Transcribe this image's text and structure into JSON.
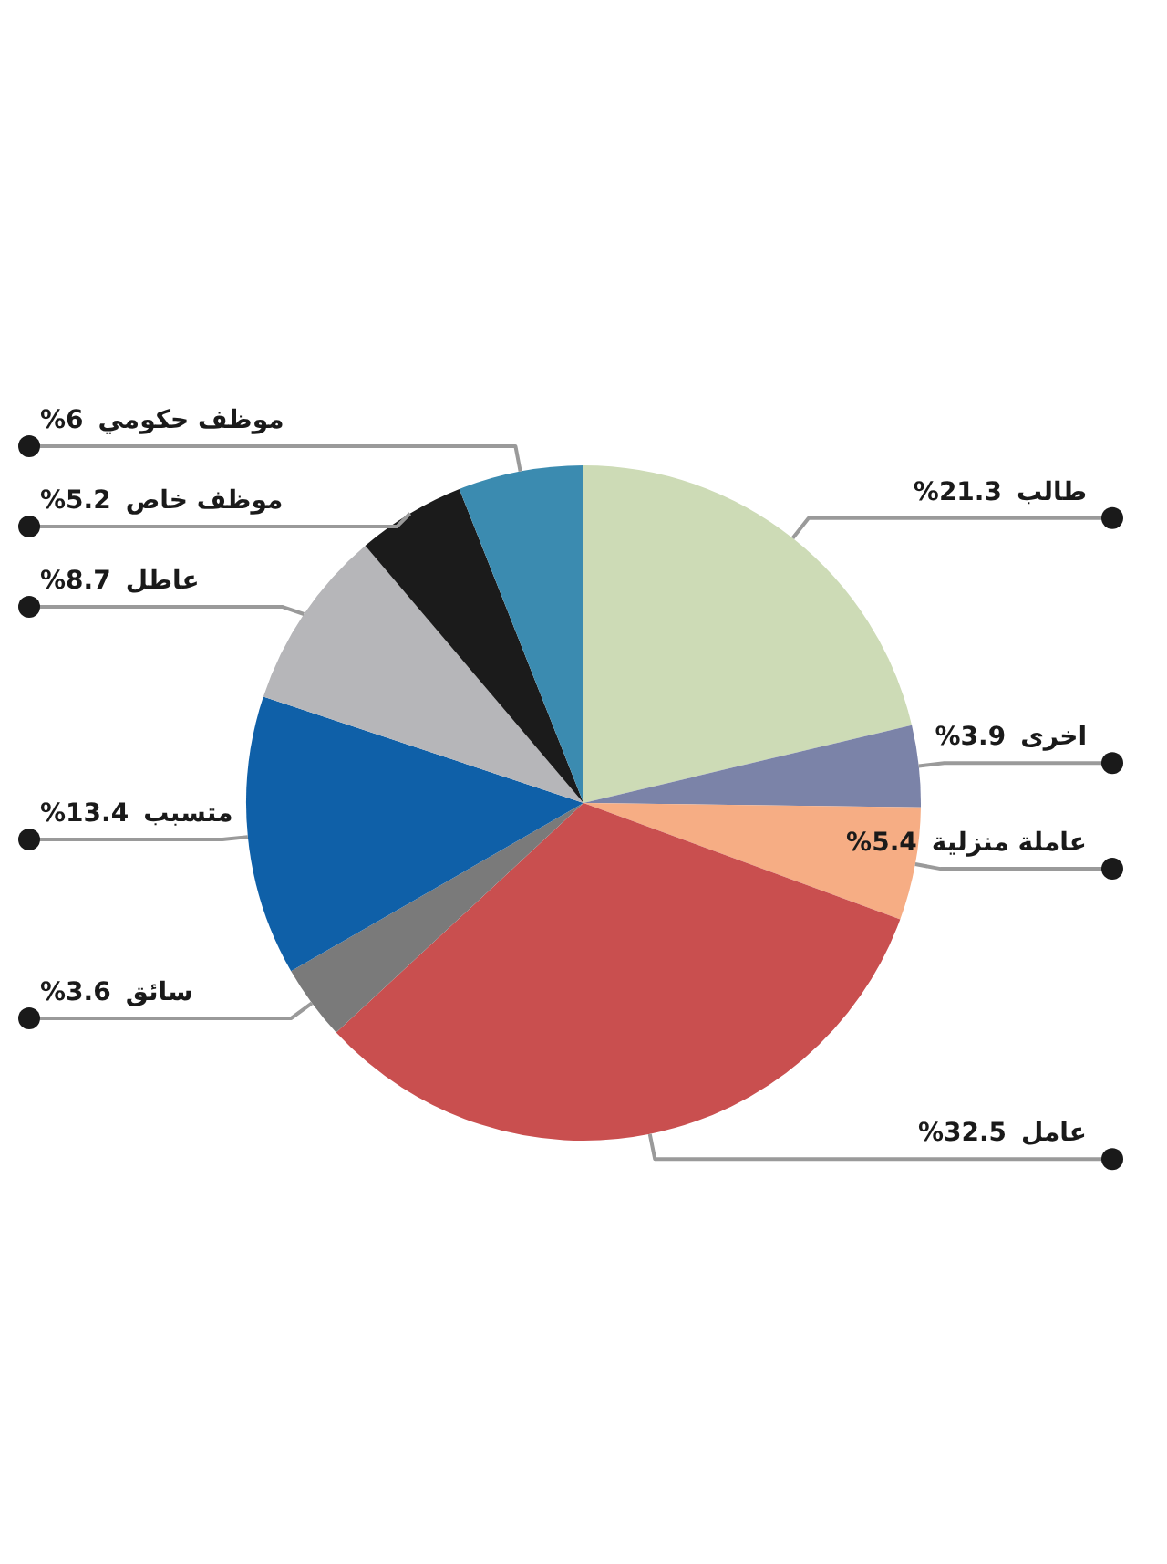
{
  "chart_data": {
    "type": "pie",
    "categories": [
      "طالب",
      "اخرى",
      "عاملة منزلية",
      "عامل",
      "سائق",
      "متسبب",
      "عاطل",
      "موظف خاص",
      "موظف حكومي"
    ],
    "values": [
      21.3,
      3.9,
      5.4,
      32.5,
      3.6,
      13.4,
      8.7,
      5.2,
      6
    ],
    "value_labels": [
      "%21.3",
      "%3.9",
      "%5.4",
      "%32.5",
      "%3.6",
      "%13.4",
      "%8.7",
      "%5.2",
      "%6"
    ],
    "colors": [
      "#cddbb6",
      "#7b83a8",
      "#f6ad84",
      "#c94f4f",
      "#7a7a7a",
      "#0f60a8",
      "#b6b6b9",
      "#1b1b1b",
      "#3b8bb0"
    ],
    "legend": false
  }
}
